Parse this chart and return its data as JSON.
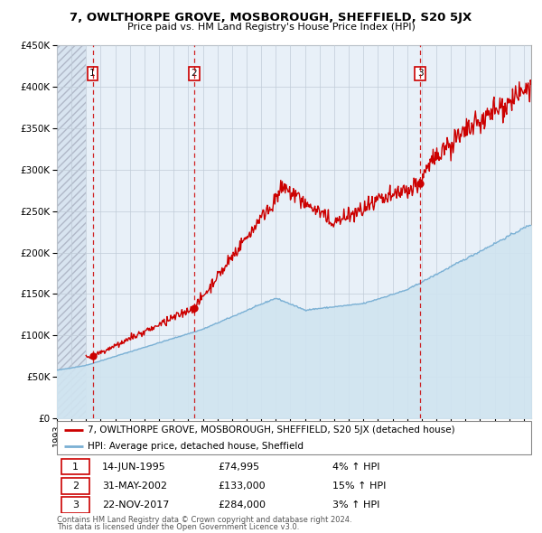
{
  "title": "7, OWLTHORPE GROVE, MOSBOROUGH, SHEFFIELD, S20 5JX",
  "subtitle": "Price paid vs. HM Land Registry's House Price Index (HPI)",
  "ylim": [
    0,
    450000
  ],
  "yticks": [
    0,
    50000,
    100000,
    150000,
    200000,
    250000,
    300000,
    350000,
    400000,
    450000
  ],
  "xlim_start": 1993.0,
  "xlim_end": 2025.5,
  "hpi_color": "#7ab0d4",
  "hpi_fill_color": "#d0e4f0",
  "price_color": "#cc0000",
  "transactions": [
    {
      "label": "1",
      "date_str": "14-JUN-1995",
      "year": 1995.45,
      "price": 74995,
      "hpi_pct": "4% ↑ HPI"
    },
    {
      "label": "2",
      "date_str": "31-MAY-2002",
      "year": 2002.41,
      "price": 133000,
      "hpi_pct": "15% ↑ HPI"
    },
    {
      "label": "3",
      "date_str": "22-NOV-2017",
      "year": 2017.89,
      "price": 284000,
      "hpi_pct": "3% ↑ HPI"
    }
  ],
  "legend_line1": "7, OWLTHORPE GROVE, MOSBOROUGH, SHEFFIELD, S20 5JX (detached house)",
  "legend_line2": "HPI: Average price, detached house, Sheffield",
  "footnote": "Contains HM Land Registry data © Crown copyright and database right 2024.\nThis data is licensed under the Open Government Licence v3.0."
}
